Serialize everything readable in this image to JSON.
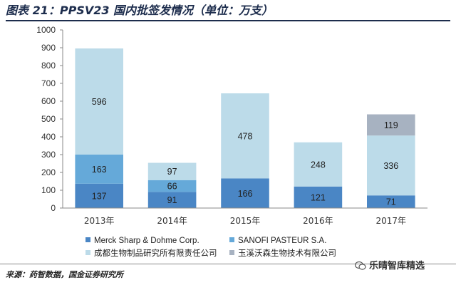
{
  "title": "图表 21：PPSV23 国内批签发情况（单位：万支）",
  "source": "来源：药智数据，国金证券研究所",
  "watermark": "乐晴智库精选",
  "colors": {
    "merck": "#4a86c5",
    "sanofi": "#65a9d9",
    "chengdu": "#bcdbe9",
    "yuxi": "#a7b2c1"
  },
  "chart_data": {
    "type": "bar",
    "stacked": true,
    "categories": [
      "2013年",
      "2014年",
      "2015年",
      "2016年",
      "2017年"
    ],
    "ylim": [
      0,
      1000
    ],
    "yticks": [
      0,
      100,
      200,
      300,
      400,
      500,
      600,
      700,
      800,
      900,
      1000
    ],
    "grid": false,
    "legend_position": "bottom",
    "series": [
      {
        "name": "Merck Sharp & Dohme Corp.",
        "color": "#4a86c5",
        "values": [
          137,
          91,
          166,
          121,
          71
        ]
      },
      {
        "name": "SANOFI PASTEUR S.A.",
        "color": "#65a9d9",
        "values": [
          163,
          66,
          0,
          0,
          0
        ]
      },
      {
        "name": "成都生物制品研究所有限责任公司",
        "color": "#bcdbe9",
        "values": [
          596,
          97,
          478,
          248,
          336
        ]
      },
      {
        "name": "玉溪沃森生物技术有限公司",
        "color": "#a7b2c1",
        "values": [
          0,
          0,
          0,
          0,
          119
        ]
      }
    ],
    "value_labels": [
      {
        "category": 0,
        "series": 0,
        "text": "137"
      },
      {
        "category": 0,
        "series": 1,
        "text": "163"
      },
      {
        "category": 0,
        "series": 2,
        "text": "596"
      },
      {
        "category": 1,
        "series": 0,
        "text": "91"
      },
      {
        "category": 1,
        "series": 1,
        "text": "66"
      },
      {
        "category": 1,
        "series": 2,
        "text": "97"
      },
      {
        "category": 2,
        "series": 0,
        "text": "166"
      },
      {
        "category": 2,
        "series": 2,
        "text": "478"
      },
      {
        "category": 3,
        "series": 0,
        "text": "121"
      },
      {
        "category": 3,
        "series": 2,
        "text": "248"
      },
      {
        "category": 4,
        "series": 0,
        "text": "71"
      },
      {
        "category": 4,
        "series": 2,
        "text": "336"
      },
      {
        "category": 4,
        "series": 3,
        "text": "119"
      }
    ]
  }
}
